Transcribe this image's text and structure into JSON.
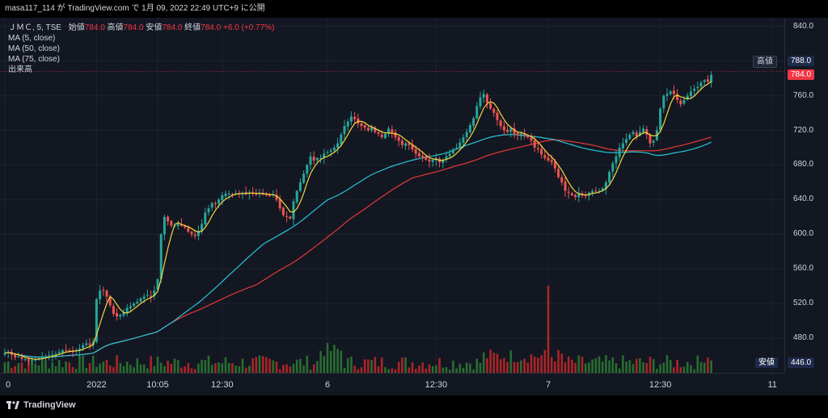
{
  "header": {
    "publish_line": "masa117_114 が TradingView.com で 1月 09, 2022 22:49 UTC+9 に公開"
  },
  "legend": {
    "symbol": "ＪＭＣ, 5, TSE",
    "ohlc": [
      {
        "label": "始値",
        "value": "784.0"
      },
      {
        "label": "高値",
        "value": "784.0"
      },
      {
        "label": "安値",
        "value": "784.0"
      },
      {
        "label": "終値",
        "value": "784.0"
      }
    ],
    "change": "+6.0 (+0.77%)",
    "indicators": [
      "MA (5, close)",
      "MA (50, close)",
      "MA (75, close)",
      "出来高"
    ]
  },
  "price_tags": {
    "high_label": "高値",
    "high_value": "788.0",
    "last_value": "784.0",
    "low_label": "安値",
    "low_value": "446.0"
  },
  "footer": {
    "brand": "TradingView"
  },
  "colors": {
    "up": "#26a69a",
    "down": "#ef5350",
    "ma5": "#f5d63d",
    "ma50": "#26c6da",
    "ma75": "#e53935",
    "vol_up": "#2e7d32",
    "vol_down": "#c62828"
  },
  "chart_data": {
    "type": "candlestick",
    "ylim": [
      440,
      850
    ],
    "y_ticks": [
      "840.0",
      "800.0",
      "760.0",
      "720.0",
      "680.0",
      "640.0",
      "600.0",
      "560.0",
      "520.0",
      "480.0"
    ],
    "x_ticks": [
      "0",
      "2022",
      "10:05",
      "12:30",
      "6",
      "12:30",
      "7",
      "12:30",
      "11"
    ],
    "x_tick_index": [
      0,
      27,
      45,
      64,
      95,
      127,
      160,
      193,
      226
    ],
    "close": [
      463,
      464,
      461,
      458,
      459,
      456,
      456,
      455,
      455,
      456,
      457,
      458,
      459,
      460,
      461,
      462,
      464,
      466,
      466,
      465,
      464,
      466,
      468,
      472,
      474,
      472,
      476,
      525,
      535,
      535,
      528,
      518,
      508,
      505,
      507,
      510,
      515,
      517,
      520,
      522,
      526,
      528,
      530,
      528,
      535,
      548,
      600,
      620,
      615,
      610,
      610,
      612,
      610,
      608,
      603,
      600,
      598,
      604,
      612,
      625,
      630,
      636,
      635,
      640,
      645,
      647,
      647,
      646,
      647,
      647,
      648,
      647,
      648,
      647,
      646,
      648,
      646,
      645,
      644,
      646,
      640,
      630,
      622,
      620,
      618,
      638,
      650,
      660,
      670,
      680,
      690,
      685,
      688,
      688,
      693,
      695,
      697,
      700,
      705,
      715,
      725,
      730,
      736,
      733,
      728,
      725,
      723,
      720,
      724,
      718,
      716,
      712,
      716,
      722,
      717,
      712,
      708,
      703,
      705,
      703,
      698,
      693,
      690,
      689,
      686,
      684,
      686,
      688,
      683,
      686,
      690,
      693,
      698,
      700,
      706,
      712,
      718,
      726,
      734,
      748,
      758,
      762,
      752,
      745,
      740,
      732,
      725,
      720,
      718,
      722,
      716,
      714,
      716,
      714,
      712,
      708,
      700,
      698,
      692,
      688,
      685,
      683,
      676,
      666,
      660,
      650,
      648,
      645,
      643,
      648,
      645,
      645,
      648,
      650,
      650,
      650,
      653,
      660,
      672,
      682,
      690,
      700,
      705,
      710,
      715,
      718,
      713,
      718,
      722,
      715,
      705,
      708,
      720,
      745,
      760,
      762,
      765,
      762,
      755,
      750,
      755,
      760,
      765,
      768,
      770,
      775,
      778,
      776,
      784
    ],
    "open_offsets": "each candle opens near the prior close (derived in script)",
    "ma5": "5-period moving average of close",
    "ma50": "50-period moving average of close",
    "ma75": "75-period moving average of close",
    "volume_profile": "relative bar heights, spike at session 7 open",
    "volume_peak_index": 160
  }
}
